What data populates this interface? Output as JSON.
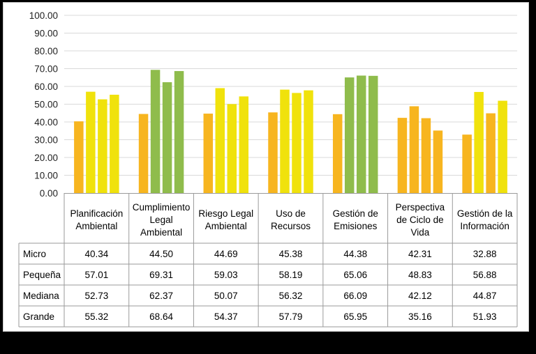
{
  "chart_data": {
    "type": "bar",
    "ylim": [
      0,
      100
    ],
    "yticks": [
      "0.00",
      "10.00",
      "20.00",
      "30.00",
      "40.00",
      "50.00",
      "60.00",
      "70.00",
      "80.00",
      "90.00",
      "100.00"
    ],
    "grid": true,
    "categories": [
      [
        "Planificación",
        "Ambiental"
      ],
      [
        "Cumplimiento",
        "Legal",
        "Ambiental"
      ],
      [
        "Riesgo Legal",
        "Ambiental"
      ],
      [
        "Uso de",
        "Recursos"
      ],
      [
        "Gestión de",
        "Emisiones"
      ],
      [
        "Perspectiva",
        "de Ciclo de",
        "Vida"
      ],
      [
        "Gestión de la",
        "Información"
      ]
    ],
    "series": [
      {
        "name": "Micro",
        "values": [
          40.34,
          44.5,
          44.69,
          45.38,
          44.38,
          42.31,
          32.88
        ],
        "labels": [
          "40.34",
          "44.50",
          "44.69",
          "45.38",
          "44.38",
          "42.31",
          "32.88"
        ]
      },
      {
        "name": "Pequeña",
        "values": [
          57.01,
          69.31,
          59.03,
          58.19,
          65.06,
          48.83,
          56.88
        ],
        "labels": [
          "57.01",
          "69.31",
          "59.03",
          "58.19",
          "65.06",
          "48.83",
          "56.88"
        ]
      },
      {
        "name": "Mediana",
        "values": [
          52.73,
          62.37,
          50.07,
          56.32,
          66.09,
          42.12,
          44.87
        ],
        "labels": [
          "52.73",
          "62.37",
          "50.07",
          "56.32",
          "66.09",
          "42.12",
          "44.87"
        ]
      },
      {
        "name": "Grande",
        "values": [
          55.32,
          68.64,
          54.37,
          57.79,
          65.95,
          35.16,
          51.93
        ],
        "labels": [
          "55.32",
          "68.64",
          "54.37",
          "57.79",
          "65.95",
          "35.16",
          "51.93"
        ]
      }
    ],
    "color_scale": [
      {
        "min": 60,
        "color": "#8fbc4c"
      },
      {
        "min": 50,
        "color": "#f0e20c"
      },
      {
        "min": 0,
        "color": "#f7b51f"
      }
    ]
  }
}
